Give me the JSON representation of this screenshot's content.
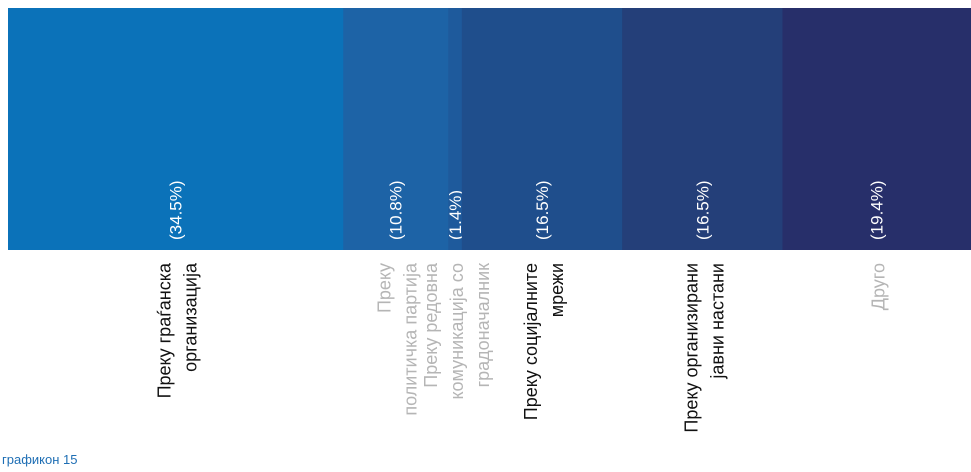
{
  "chart_data": {
    "type": "bar",
    "orientation": "stacked-horizontal-100",
    "title": "",
    "xlabel": "",
    "ylabel": "",
    "unit": "%",
    "categories": [
      "Преку граѓанска организација",
      "Преку политичка партија",
      "Преку редовна комуникација со градоначалник",
      "Преку социјалните мрежи",
      "Преку организирани јавни настани",
      "Друго"
    ],
    "category_lines": [
      [
        "Преку граѓанска",
        "организација"
      ],
      [
        "Преку",
        "политичка партија"
      ],
      [
        "Преку редовна",
        "комуникација со",
        "градоначалник"
      ],
      [
        "Преку социјалните",
        "мрежи"
      ],
      [
        "Преку организирани",
        "јавни настани"
      ],
      [
        "Друго"
      ]
    ],
    "values": [
      34.5,
      10.8,
      1.4,
      16.5,
      16.5,
      19.4
    ],
    "value_labels": [
      "(34.5%)",
      "(10.8%)",
      "(1.4%)",
      "(16.5%)",
      "(16.5%)",
      "(19.4%)"
    ],
    "colors": [
      "#0b72b9",
      "#1d63a6",
      "#1e5a9c",
      "#1f4e8c",
      "#243f79",
      "#272f6a"
    ],
    "category_label_colors": [
      "#111111",
      "#b5b5b5",
      "#b5b5b5",
      "#111111",
      "#111111",
      "#b5b5b5"
    ],
    "value_label_color": "#ffffff"
  },
  "caption": "графикон 15"
}
